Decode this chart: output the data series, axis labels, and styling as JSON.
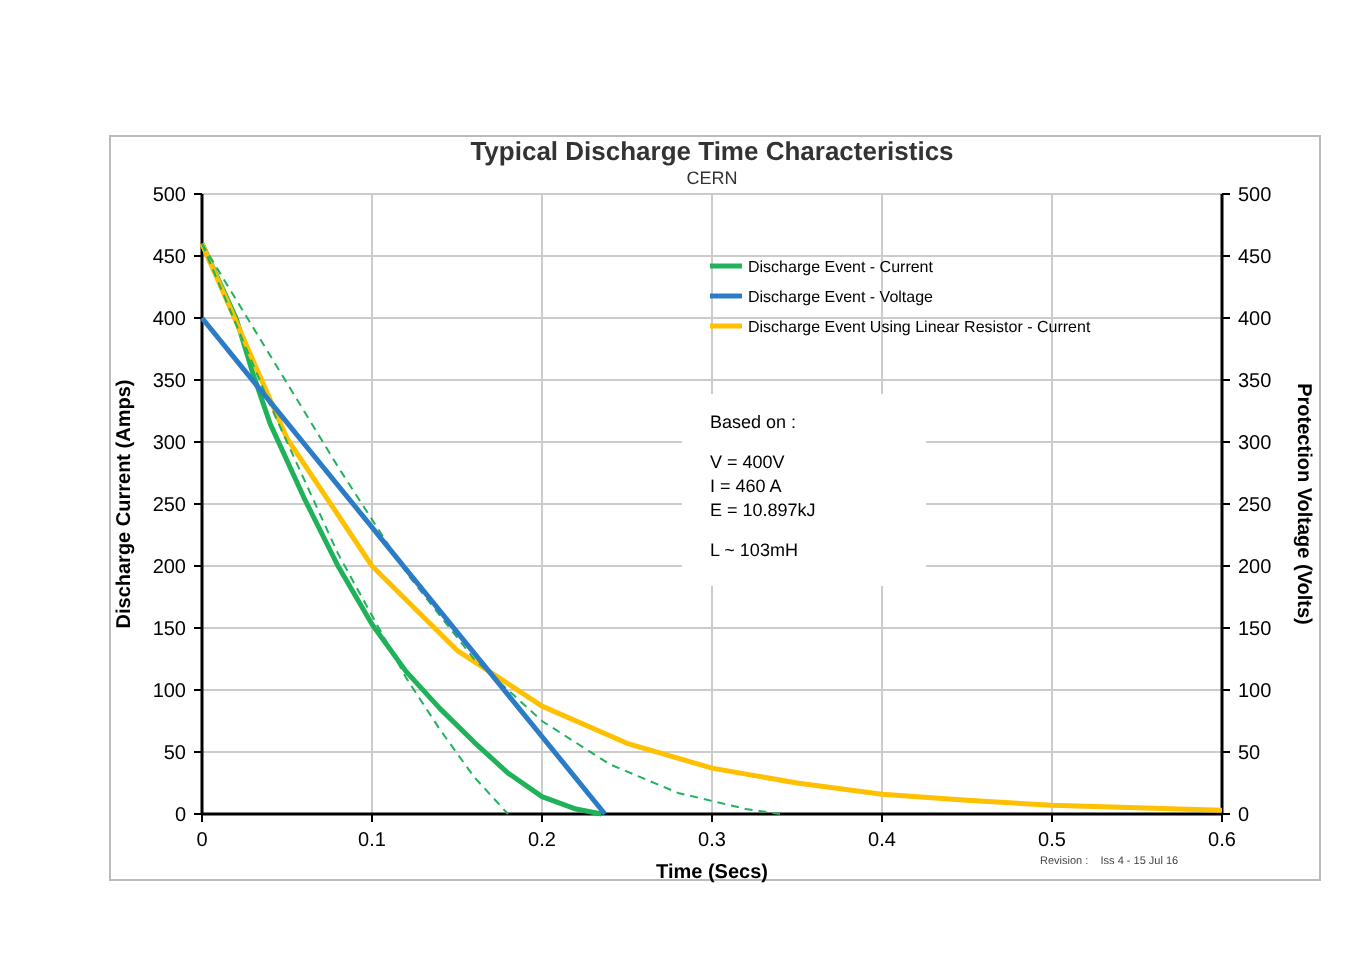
{
  "chart_data": {
    "type": "line",
    "title": "Typical Discharge Time Characteristics",
    "subtitle": "CERN",
    "xlabel": "Time (Secs)",
    "ylabel": "Discharge Current (Amps)",
    "y2label": "Protection Voltage (Volts)",
    "xlim": [
      0,
      0.6
    ],
    "xticks": [
      0,
      0.1,
      0.2,
      0.3,
      0.4,
      0.5,
      0.6
    ],
    "ylim": [
      0,
      500
    ],
    "yticks": [
      0,
      50,
      100,
      150,
      200,
      250,
      300,
      350,
      400,
      450,
      500
    ],
    "y2lim": [
      0,
      500
    ],
    "y2ticks": [
      0,
      50,
      100,
      150,
      200,
      250,
      300,
      350,
      400,
      450,
      500
    ],
    "grid": true,
    "legend": "top right",
    "annotations": [
      "Based on :",
      "V = 400V",
      "I = 460 A",
      "E = 10.897kJ",
      "L ~ 103mH",
      "Revision :    Iss 4 - 15 Jul 16"
    ],
    "series": [
      {
        "name": "Discharge Event - Current",
        "color": "#1fb25a",
        "x": [
          0,
          0.02,
          0.03,
          0.04,
          0.06,
          0.08,
          0.1,
          0.12,
          0.14,
          0.16,
          0.18,
          0.2,
          0.22,
          0.235
        ],
        "values": [
          460,
          400,
          355,
          315,
          255,
          200,
          153,
          115,
          85,
          58,
          33,
          14,
          4,
          0
        ]
      },
      {
        "name": "Discharge Event - Voltage",
        "color": "#2a7cc7",
        "axis": "y2",
        "x": [
          0,
          0.237
        ],
        "values": [
          400,
          0
        ]
      },
      {
        "name": "Discharge Event Using Linear Resistor - Current",
        "color": "#ffc000",
        "x": [
          0,
          0.05,
          0.1,
          0.15,
          0.2,
          0.25,
          0.3,
          0.35,
          0.4,
          0.45,
          0.5,
          0.55,
          0.6
        ],
        "values": [
          460,
          303,
          200,
          132,
          87,
          57,
          37,
          25,
          16,
          11,
          7,
          5,
          3
        ]
      },
      {
        "color": "#1fb25a",
        "line_style": "dashed",
        "x": [
          0,
          0.04,
          0.08,
          0.1,
          0.12,
          0.14,
          0.16,
          0.18
        ],
        "values": [
          460,
          330,
          210,
          160,
          110,
          68,
          30,
          0
        ]
      },
      {
        "color": "#1fb25a",
        "line_style": "dashed",
        "x": [
          0,
          0.04,
          0.08,
          0.12,
          0.16,
          0.2,
          0.24,
          0.28,
          0.32,
          0.34
        ],
        "values": [
          460,
          370,
          280,
          195,
          125,
          75,
          40,
          17,
          4,
          0
        ]
      }
    ]
  }
}
